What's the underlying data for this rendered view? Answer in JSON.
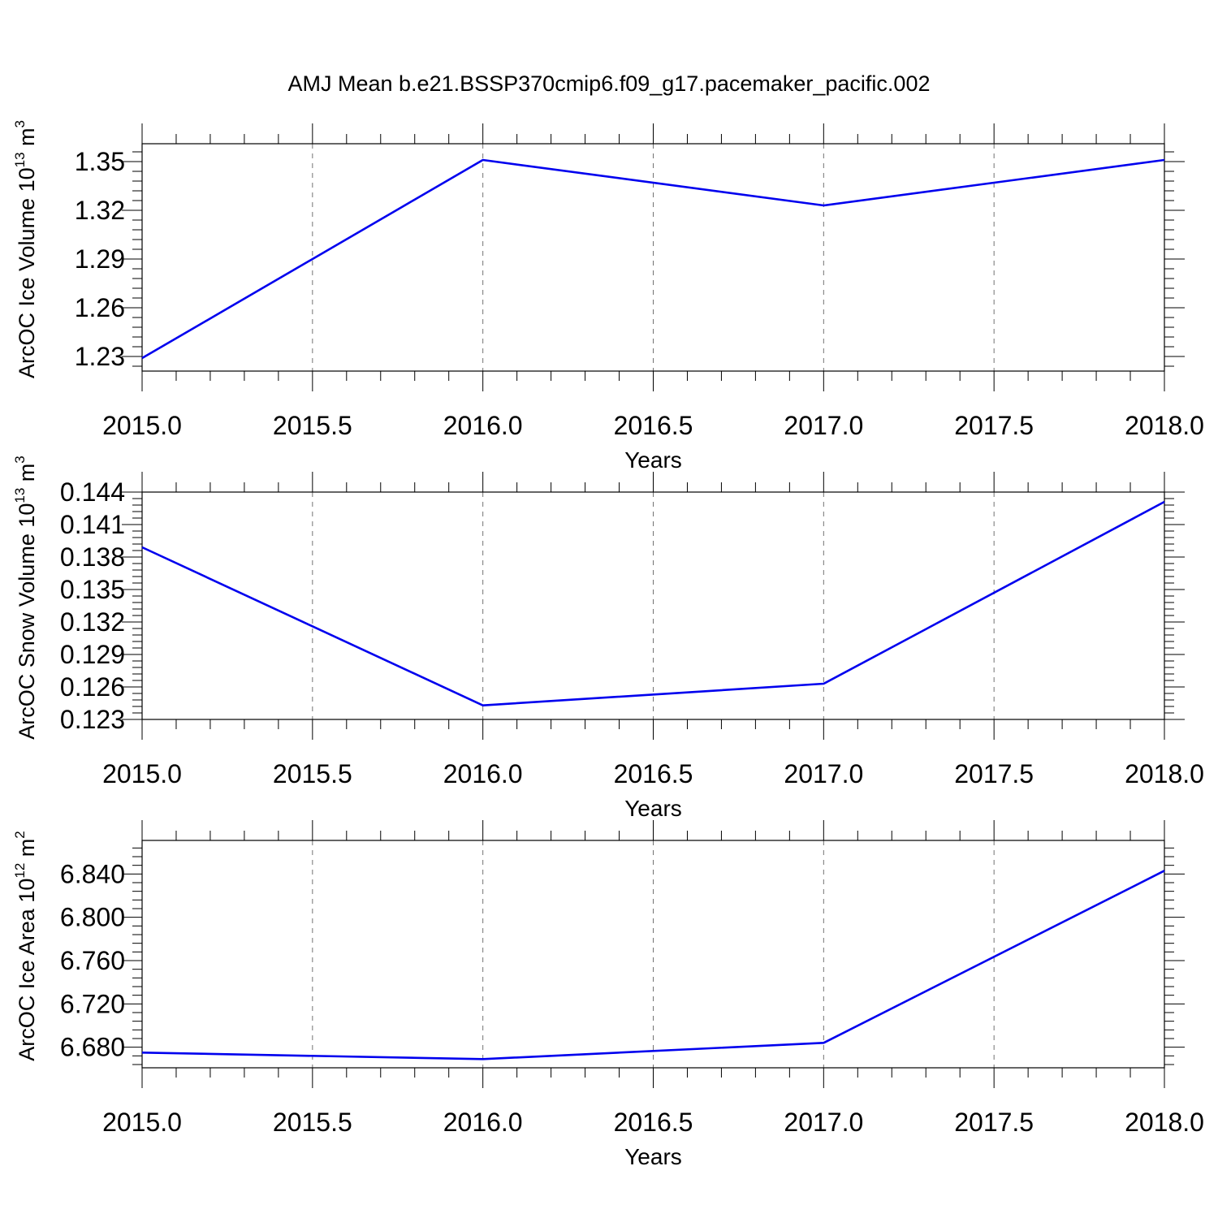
{
  "title": "AMJ Mean b.e21.BSSP370cmip6.f09_g17.pacemaker_pacific.002",
  "colors": {
    "line": "#0000ee",
    "axis": "#000000",
    "grid": "#888888"
  },
  "chart_data": [
    {
      "type": "line",
      "title": "",
      "xlabel": "Years",
      "ylabel": {
        "base": "ArcOC Ice Volume 10",
        "exp": "13",
        "unit": " m",
        "unit_exp": "3"
      },
      "x": [
        2015.0,
        2016.0,
        2017.0,
        2018.0
      ],
      "y": [
        1.229,
        1.351,
        1.323,
        1.351
      ],
      "xlim": [
        2015.0,
        2018.0
      ],
      "ylim": [
        1.221,
        1.361
      ],
      "x_ticks": [
        "2015.0",
        "2015.5",
        "2016.0",
        "2016.5",
        "2017.0",
        "2017.5",
        "2018.0"
      ],
      "y_ticks": [
        "1.23",
        "1.26",
        "1.29",
        "1.32",
        "1.35"
      ],
      "grid": "dashed vertical at x ticks"
    },
    {
      "type": "line",
      "title": "",
      "xlabel": "Years",
      "ylabel": {
        "base": "ArcOC Snow Volume 10",
        "exp": "13",
        "unit": " m",
        "unit_exp": "3"
      },
      "x": [
        2015.0,
        2016.0,
        2017.0,
        2018.0
      ],
      "y": [
        0.1389,
        0.1243,
        0.1263,
        0.1431
      ],
      "xlim": [
        2015.0,
        2018.0
      ],
      "ylim": [
        0.123,
        0.144
      ],
      "x_ticks": [
        "2015.0",
        "2015.5",
        "2016.0",
        "2016.5",
        "2017.0",
        "2017.5",
        "2018.0"
      ],
      "y_ticks": [
        "0.123",
        "0.126",
        "0.129",
        "0.132",
        "0.135",
        "0.138",
        "0.141",
        "0.144"
      ],
      "grid": "dashed vertical at x ticks"
    },
    {
      "type": "line",
      "title": "",
      "xlabel": "Years",
      "ylabel": {
        "base": "ArcOC Ice Area 10",
        "exp": "12",
        "unit": " m",
        "unit_exp": "2"
      },
      "x": [
        2015.0,
        2016.0,
        2017.0,
        2018.0
      ],
      "y": [
        6.675,
        6.669,
        6.684,
        6.843
      ],
      "xlim": [
        2015.0,
        2018.0
      ],
      "ylim": [
        6.661,
        6.871
      ],
      "x_ticks": [
        "2015.0",
        "2015.5",
        "2016.0",
        "2016.5",
        "2017.0",
        "2017.5",
        "2018.0"
      ],
      "y_ticks": [
        "6.680",
        "6.720",
        "6.760",
        "6.800",
        "6.840"
      ],
      "grid": "dashed vertical at x ticks"
    }
  ]
}
